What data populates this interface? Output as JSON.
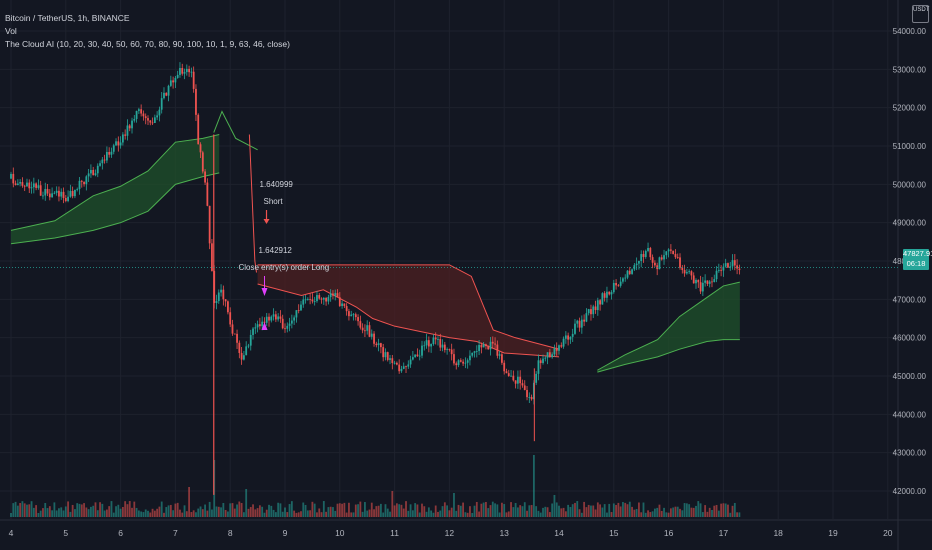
{
  "header": {
    "symbol_line": "Bitcoin / TetherUS, 1h, BINANCE",
    "vol_label": "Vol",
    "indicator_line": "The Cloud AI (10, 20, 30, 40, 50, 60, 70, 80, 90, 100, 10, 1, 9, 63, 46, close)"
  },
  "currency_button": "USDT",
  "last_price": {
    "value": "47827.91",
    "countdown": "06:18"
  },
  "colors": {
    "background": "#131722",
    "bull": "#26a69a",
    "bear": "#ef5350",
    "cloud_green": "#1e4d2b",
    "cloud_red": "#4a1f22",
    "signal": "#e040fb"
  },
  "signals": [
    {
      "value_label": "1.640999",
      "label": "Short"
    },
    {
      "value_label": "1.642912",
      "label": "Close entry(s) order Long"
    }
  ],
  "chart_data": {
    "type": "candlestick",
    "x_ticks": [
      "4",
      "5",
      "6",
      "7",
      "8",
      "9",
      "10",
      "11",
      "12",
      "13",
      "14",
      "15",
      "16",
      "17",
      "18",
      "19",
      "20"
    ],
    "y_ticks": [
      "42000.00",
      "43000.00",
      "44000.00",
      "45000.00",
      "46000.00",
      "47000.00",
      "48000.00",
      "49000.00",
      "50000.00",
      "51000.00",
      "52000.00",
      "53000.00",
      "54000.00"
    ],
    "ylim": [
      41750,
      54250
    ],
    "price_path": [
      [
        4.0,
        50150
      ],
      [
        4.5,
        49850
      ],
      [
        5.0,
        49650
      ],
      [
        5.5,
        50300
      ],
      [
        6.0,
        51200
      ],
      [
        6.3,
        51900
      ],
      [
        6.6,
        51650
      ],
      [
        6.9,
        52600
      ],
      [
        7.15,
        53050
      ],
      [
        7.3,
        52900
      ],
      [
        7.4,
        51300
      ],
      [
        7.55,
        50000
      ],
      [
        7.7,
        47000
      ],
      [
        7.85,
        47200
      ],
      [
        8.0,
        46400
      ],
      [
        8.2,
        45400
      ],
      [
        8.45,
        46300
      ],
      [
        8.8,
        46550
      ],
      [
        9.0,
        46300
      ],
      [
        9.3,
        46900
      ],
      [
        9.6,
        47000
      ],
      [
        9.9,
        47100
      ],
      [
        10.2,
        46600
      ],
      [
        10.5,
        46200
      ],
      [
        10.8,
        45600
      ],
      [
        11.1,
        45100
      ],
      [
        11.4,
        45550
      ],
      [
        11.7,
        46000
      ],
      [
        12.0,
        45600
      ],
      [
        12.2,
        45250
      ],
      [
        12.5,
        45700
      ],
      [
        12.8,
        45800
      ],
      [
        13.0,
        45200
      ],
      [
        13.3,
        44800
      ],
      [
        13.5,
        44300
      ],
      [
        13.6,
        45300
      ],
      [
        13.8,
        45500
      ],
      [
        14.0,
        45700
      ],
      [
        14.2,
        46100
      ],
      [
        14.5,
        46600
      ],
      [
        14.8,
        47050
      ],
      [
        15.1,
        47450
      ],
      [
        15.4,
        47850
      ],
      [
        15.6,
        48300
      ],
      [
        15.8,
        47900
      ],
      [
        16.0,
        48400
      ],
      [
        16.3,
        47750
      ],
      [
        16.6,
        47300
      ],
      [
        16.9,
        47700
      ],
      [
        17.1,
        47950
      ],
      [
        17.3,
        47830
      ]
    ],
    "cloud_green_1": {
      "upper": [
        [
          4.0,
          48800
        ],
        [
          4.8,
          49050
        ],
        [
          5.5,
          49700
        ],
        [
          6.0,
          49950
        ],
        [
          6.5,
          50350
        ],
        [
          7.0,
          51100
        ],
        [
          7.5,
          51200
        ],
        [
          7.8,
          51300
        ]
      ],
      "lower": [
        [
          4.0,
          48450
        ],
        [
          4.8,
          48600
        ],
        [
          5.5,
          48800
        ],
        [
          6.0,
          49000
        ],
        [
          6.5,
          49300
        ],
        [
          7.0,
          50000
        ],
        [
          7.5,
          50200
        ],
        [
          7.8,
          50300
        ]
      ]
    },
    "cloud_top_line": [
      [
        7.7,
        51350
      ],
      [
        7.85,
        51900
      ],
      [
        8.1,
        51200
      ],
      [
        8.5,
        50900
      ]
    ],
    "cloud_red": {
      "upper": [
        [
          8.5,
          47900
        ],
        [
          12.0,
          47900
        ],
        [
          12.4,
          47600
        ],
        [
          12.8,
          46200
        ],
        [
          13.2,
          46000
        ],
        [
          14.0,
          45700
        ]
      ],
      "lower": [
        [
          8.5,
          47400
        ],
        [
          9.3,
          47100
        ],
        [
          9.7,
          47250
        ],
        [
          10.3,
          46800
        ],
        [
          10.6,
          46500
        ],
        [
          11.0,
          46300
        ],
        [
          11.5,
          46150
        ],
        [
          12.0,
          46000
        ],
        [
          12.5,
          45900
        ],
        [
          13.0,
          45600
        ],
        [
          13.5,
          45550
        ],
        [
          14.0,
          45500
        ]
      ]
    },
    "cloud_green_2": {
      "upper": [
        [
          14.7,
          45150
        ],
        [
          15.2,
          45550
        ],
        [
          15.8,
          45950
        ],
        [
          16.2,
          46550
        ],
        [
          16.7,
          47050
        ],
        [
          17.0,
          47350
        ],
        [
          17.3,
          47450
        ]
      ],
      "lower": [
        [
          14.7,
          45100
        ],
        [
          15.2,
          45300
        ],
        [
          15.8,
          45500
        ],
        [
          16.2,
          45700
        ],
        [
          16.7,
          45900
        ],
        [
          17.0,
          45950
        ],
        [
          17.3,
          45950
        ]
      ]
    },
    "last_price": 47827.91
  }
}
